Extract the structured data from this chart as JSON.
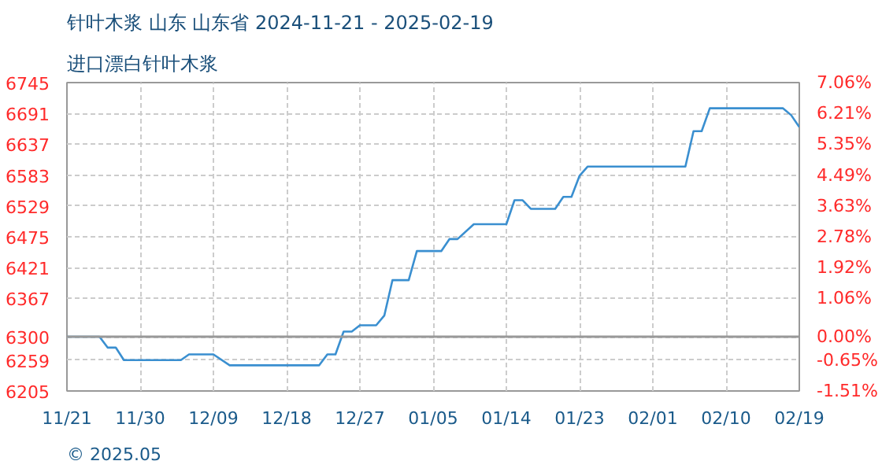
{
  "chart_data": {
    "type": "line",
    "title": "针叶木浆 山东 山东省 2024-11-21 - 2025-02-19",
    "subtitle": "进口漂白针叶木浆",
    "annotations": [
      "© 2025.05"
    ],
    "x": [
      "2024-11-21",
      "2024-11-25",
      "2024-11-26",
      "2024-11-27",
      "2024-11-28",
      "2024-12-05",
      "2024-12-06",
      "2024-12-09",
      "2024-12-11",
      "2024-12-22",
      "2024-12-23",
      "2024-12-24",
      "2024-12-25",
      "2024-12-26",
      "2024-12-27",
      "2024-12-29",
      "2024-12-30",
      "2024-12-31",
      "2025-01-02",
      "2025-01-03",
      "2025-01-06",
      "2025-01-07",
      "2025-01-08",
      "2025-01-10",
      "2025-01-14",
      "2025-01-15",
      "2025-01-16",
      "2025-01-17",
      "2025-01-20",
      "2025-01-21",
      "2025-01-22",
      "2025-01-23",
      "2025-01-24",
      "2025-02-05",
      "2025-02-06",
      "2025-02-07",
      "2025-02-08",
      "2025-02-17",
      "2025-02-18",
      "2025-02-19"
    ],
    "series": [
      {
        "color": "#3a8fd0",
        "values": [
          6300,
          6300,
          6281,
          6281,
          6259,
          6259,
          6269,
          6269,
          6250,
          6250,
          6269,
          6269,
          6309,
          6309,
          6320,
          6320,
          6337,
          6399,
          6399,
          6450,
          6450,
          6471,
          6471,
          6497,
          6497,
          6539,
          6539,
          6524,
          6524,
          6545,
          6545,
          6582,
          6598,
          6598,
          6660,
          6660,
          6700,
          6700,
          6688,
          6667
        ]
      }
    ],
    "xlim": [
      "2024-11-21",
      "2025-02-19"
    ],
    "xticks": [
      {
        "value": "2024-11-21",
        "label": "11/21"
      },
      {
        "value": "2024-11-30",
        "label": "11/30"
      },
      {
        "value": "2024-12-09",
        "label": "12/09"
      },
      {
        "value": "2024-12-18",
        "label": "12/18"
      },
      {
        "value": "2024-12-27",
        "label": "12/27"
      },
      {
        "value": "2025-01-05",
        "label": "01/05"
      },
      {
        "value": "2025-01-14",
        "label": "01/14"
      },
      {
        "value": "2025-01-23",
        "label": "01/23"
      },
      {
        "value": "2025-02-01",
        "label": "02/01"
      },
      {
        "value": "2025-02-10",
        "label": "02/10"
      },
      {
        "value": "2025-02-19",
        "label": "02/19"
      }
    ],
    "ylim": [
      6205,
      6745
    ],
    "yticks": [
      6205,
      6259,
      6300,
      6367,
      6421,
      6475,
      6529,
      6583,
      6637,
      6691,
      6745
    ],
    "y2lim": [
      -1.51,
      7.06
    ],
    "y2ticks": [
      {
        "value": -1.51,
        "label": "-1.51%"
      },
      {
        "value": -0.65,
        "label": "-0.65%"
      },
      {
        "value": 0,
        "label": "0.00%"
      },
      {
        "value": 1.06,
        "label": "1.06%"
      },
      {
        "value": 1.92,
        "label": "1.92%"
      },
      {
        "value": 2.78,
        "label": "2.78%"
      },
      {
        "value": 3.63,
        "label": "3.63%"
      },
      {
        "value": 4.49,
        "label": "4.49%"
      },
      {
        "value": 5.35,
        "label": "5.35%"
      },
      {
        "value": 6.21,
        "label": "6.21%"
      },
      {
        "value": 7.06,
        "label": "7.06%"
      }
    ],
    "ref_lines": [
      {
        "axis": "y",
        "value": 6300,
        "color": "#999999"
      }
    ],
    "grid": true,
    "line_style": "solid"
  }
}
